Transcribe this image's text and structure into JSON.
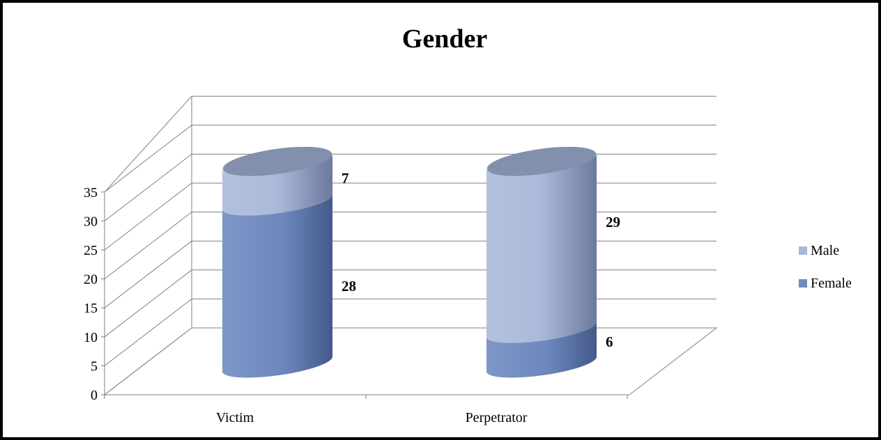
{
  "chart_data": {
    "type": "bar",
    "stacked": true,
    "style": "3d-cylinder",
    "title": "Gender",
    "xlabel": "",
    "ylabel": "",
    "categories": [
      "Victim",
      "Perpetrator"
    ],
    "series": [
      {
        "name": "Female",
        "values": [
          28,
          6
        ],
        "color": "#6f8abf"
      },
      {
        "name": "Male",
        "values": [
          7,
          29
        ],
        "color": "#aab8d9"
      }
    ],
    "ylim": [
      0,
      35
    ],
    "yticks": [
      "0",
      "5",
      "10",
      "15",
      "20",
      "25",
      "30",
      "35"
    ],
    "grid": true,
    "legend_position": "right",
    "legend_order": [
      "Male",
      "Female"
    ]
  }
}
